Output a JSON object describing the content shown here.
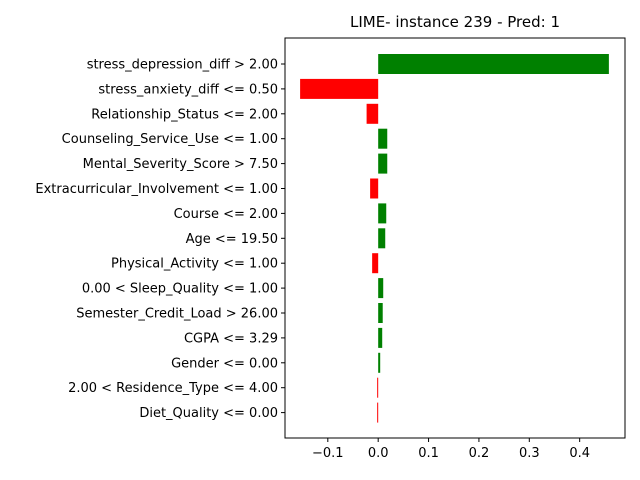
{
  "chart_data": {
    "type": "bar",
    "orientation": "horizontal",
    "title": "LIME- instance 239 - Pred: 1",
    "xlabel": "",
    "ylabel": "",
    "xlim": [
      -0.185,
      0.49
    ],
    "xticks": [
      -0.1,
      0.0,
      0.1,
      0.2,
      0.3,
      0.4
    ],
    "xtick_labels": [
      "−0.1",
      "0.0",
      "0.1",
      "0.2",
      "0.3",
      "0.4"
    ],
    "grid": false,
    "legend": false,
    "positive_color": "#008000",
    "negative_color": "#ff0000",
    "categories": [
      "stress_depression_diff > 2.00",
      "stress_anxiety_diff <= 0.50",
      "Relationship_Status <= 2.00",
      "Counseling_Service_Use <= 1.00",
      "Mental_Severity_Score > 7.50",
      "Extracurricular_Involvement <= 1.00",
      "Course <= 2.00",
      "Age <= 19.50",
      "Physical_Activity <= 1.00",
      "0.00 < Sleep_Quality <= 1.00",
      "Semester_Credit_Load > 26.00",
      "CGPA <= 3.29",
      "Gender <= 0.00",
      "2.00 < Residence_Type <= 4.00",
      "Diet_Quality <= 0.00"
    ],
    "values": [
      0.458,
      -0.155,
      -0.023,
      0.018,
      0.018,
      -0.016,
      0.016,
      0.014,
      -0.012,
      0.01,
      0.009,
      0.008,
      0.004,
      -0.002,
      -0.002
    ]
  }
}
